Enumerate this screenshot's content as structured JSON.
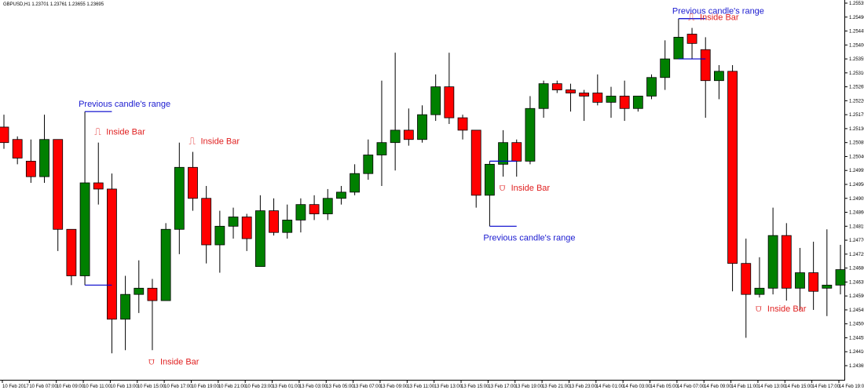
{
  "chart_data": {
    "type": "candlestick",
    "symbol_line": "GBPUSD,H1  1.23701 1.23761 1.23655 1.23695",
    "ylim": [
      1.2437,
      1.2554
    ],
    "y_ticks": [
      "1.25535",
      "1.25490",
      "1.25445",
      "1.25400",
      "1.25355",
      "1.25310",
      "1.25265",
      "1.25220",
      "1.25175",
      "1.25130",
      "1.25085",
      "1.25040",
      "1.24995",
      "1.24950",
      "1.24905",
      "1.24860",
      "1.24815",
      "1.24770",
      "1.24725",
      "1.24680",
      "1.24635",
      "1.24590",
      "1.24545",
      "1.24500",
      "1.24455",
      "1.24410",
      "1.24365"
    ],
    "x_ticks": [
      "10 Feb 2017",
      "10 Feb 07:00",
      "10 Feb 09:00",
      "10 Feb 11:00",
      "10 Feb 13:00",
      "10 Feb 15:00",
      "10 Feb 17:00",
      "10 Feb 19:00",
      "10 Feb 21:00",
      "10 Feb 23:00",
      "13 Feb 01:00",
      "13 Feb 03:00",
      "13 Feb 05:00",
      "13 Feb 07:00",
      "13 Feb 09:00",
      "13 Feb 11:00",
      "13 Feb 13:00",
      "13 Feb 15:00",
      "13 Feb 17:00",
      "13 Feb 19:00",
      "13 Feb 21:00",
      "13 Feb 23:00",
      "14 Feb 01:00",
      "14 Feb 03:00",
      "14 Feb 05:00",
      "14 Feb 07:00",
      "14 Feb 09:00",
      "14 Feb 11:00",
      "14 Feb 13:00",
      "14 Feb 15:00",
      "14 Feb 17:00",
      "14 Feb 19:00"
    ],
    "colors": {
      "bull": "#008000",
      "bear": "#ff0000",
      "range_line": "#0000cc",
      "label_range": "#1b1bd0",
      "label_inside": "#e02020",
      "axis": "#000000"
    },
    "candles": [
      {
        "o": 1.2514,
        "h": 1.2518,
        "l": 1.2507,
        "c": 1.2509
      },
      {
        "o": 1.251,
        "h": 1.2511,
        "l": 1.2502,
        "c": 1.2504
      },
      {
        "o": 1.2503,
        "h": 1.251,
        "l": 1.2496,
        "c": 1.2498
      },
      {
        "o": 1.2498,
        "h": 1.2518,
        "l": 1.2496,
        "c": 1.251
      },
      {
        "o": 1.251,
        "h": 1.251,
        "l": 1.2474,
        "c": 1.2481
      },
      {
        "o": 1.2481,
        "h": 1.2481,
        "l": 1.2463,
        "c": 1.2466
      },
      {
        "o": 1.2466,
        "h": 1.2519,
        "l": 1.2463,
        "c": 1.2496
      },
      {
        "o": 1.2496,
        "h": 1.2509,
        "l": 1.2489,
        "c": 1.2494
      },
      {
        "o": 1.2494,
        "h": 1.2499,
        "l": 1.2441,
        "c": 1.2452
      },
      {
        "o": 1.2452,
        "h": 1.2466,
        "l": 1.2442,
        "c": 1.246
      },
      {
        "o": 1.246,
        "h": 1.2471,
        "l": 1.2454,
        "c": 1.2462
      },
      {
        "o": 1.2462,
        "h": 1.2465,
        "l": 1.2442,
        "c": 1.2458
      },
      {
        "o": 1.2458,
        "h": 1.2483,
        "l": 1.2458,
        "c": 1.2481
      },
      {
        "o": 1.2481,
        "h": 1.2509,
        "l": 1.2473,
        "c": 1.2501
      },
      {
        "o": 1.2501,
        "h": 1.2506,
        "l": 1.2487,
        "c": 1.2491
      },
      {
        "o": 1.2491,
        "h": 1.2495,
        "l": 1.247,
        "c": 1.2476
      },
      {
        "o": 1.2476,
        "h": 1.2487,
        "l": 1.2467,
        "c": 1.2482
      },
      {
        "o": 1.2482,
        "h": 1.2488,
        "l": 1.2478,
        "c": 1.2485
      },
      {
        "o": 1.2485,
        "h": 1.2486,
        "l": 1.2474,
        "c": 1.2478
      },
      {
        "o": 1.2469,
        "h": 1.2492,
        "l": 1.2469,
        "c": 1.2487
      },
      {
        "o": 1.2487,
        "h": 1.2491,
        "l": 1.2479,
        "c": 1.248
      },
      {
        "o": 1.248,
        "h": 1.2489,
        "l": 1.2478,
        "c": 1.2484
      },
      {
        "o": 1.2484,
        "h": 1.2491,
        "l": 1.248,
        "c": 1.2489
      },
      {
        "o": 1.2489,
        "h": 1.2492,
        "l": 1.2484,
        "c": 1.2486
      },
      {
        "o": 1.2486,
        "h": 1.2494,
        "l": 1.2484,
        "c": 1.2491
      },
      {
        "o": 1.2491,
        "h": 1.2495,
        "l": 1.2489,
        "c": 1.2493
      },
      {
        "o": 1.2493,
        "h": 1.2502,
        "l": 1.2492,
        "c": 1.2499
      },
      {
        "o": 1.2499,
        "h": 1.251,
        "l": 1.2497,
        "c": 1.2505
      },
      {
        "o": 1.2505,
        "h": 1.2529,
        "l": 1.2495,
        "c": 1.2509
      },
      {
        "o": 1.2509,
        "h": 1.2538,
        "l": 1.25,
        "c": 1.2513
      },
      {
        "o": 1.2513,
        "h": 1.252,
        "l": 1.2508,
        "c": 1.251
      },
      {
        "o": 1.251,
        "h": 1.2521,
        "l": 1.2509,
        "c": 1.2518
      },
      {
        "o": 1.2518,
        "h": 1.2531,
        "l": 1.2516,
        "c": 1.2527
      },
      {
        "o": 1.2527,
        "h": 1.2538,
        "l": 1.2515,
        "c": 1.2517
      },
      {
        "o": 1.2517,
        "h": 1.2518,
        "l": 1.251,
        "c": 1.2513
      },
      {
        "o": 1.2513,
        "h": 1.2513,
        "l": 1.2488,
        "c": 1.2492
      },
      {
        "o": 1.2492,
        "h": 1.2503,
        "l": 1.2482,
        "c": 1.2502
      },
      {
        "o": 1.2502,
        "h": 1.2513,
        "l": 1.2498,
        "c": 1.2509
      },
      {
        "o": 1.2509,
        "h": 1.251,
        "l": 1.2498,
        "c": 1.2503
      },
      {
        "o": 1.2503,
        "h": 1.2524,
        "l": 1.2502,
        "c": 1.252
      },
      {
        "o": 1.252,
        "h": 1.2529,
        "l": 1.2517,
        "c": 1.2528
      },
      {
        "o": 1.2528,
        "h": 1.2529,
        "l": 1.2525,
        "c": 1.2526
      },
      {
        "o": 1.2526,
        "h": 1.2528,
        "l": 1.2519,
        "c": 1.2525
      },
      {
        "o": 1.2525,
        "h": 1.2526,
        "l": 1.2516,
        "c": 1.2524
      },
      {
        "o": 1.2525,
        "h": 1.2531,
        "l": 1.2521,
        "c": 1.2522
      },
      {
        "o": 1.2522,
        "h": 1.2527,
        "l": 1.2517,
        "c": 1.2524
      },
      {
        "o": 1.2524,
        "h": 1.2529,
        "l": 1.2516,
        "c": 1.252
      },
      {
        "o": 1.252,
        "h": 1.2524,
        "l": 1.2519,
        "c": 1.2524
      },
      {
        "o": 1.2524,
        "h": 1.2531,
        "l": 1.2523,
        "c": 1.253
      },
      {
        "o": 1.253,
        "h": 1.2542,
        "l": 1.2526,
        "c": 1.2536
      },
      {
        "o": 1.2536,
        "h": 1.2549,
        "l": 1.2536,
        "c": 1.2543
      },
      {
        "o": 1.2544,
        "h": 1.2546,
        "l": 1.2536,
        "c": 1.2541
      },
      {
        "o": 1.2539,
        "h": 1.2543,
        "l": 1.2517,
        "c": 1.2529
      },
      {
        "o": 1.2529,
        "h": 1.2534,
        "l": 1.2523,
        "c": 1.2532
      },
      {
        "o": 1.2532,
        "h": 1.2534,
        "l": 1.2461,
        "c": 1.247
      },
      {
        "o": 1.247,
        "h": 1.2478,
        "l": 1.2446,
        "c": 1.246
      },
      {
        "o": 1.246,
        "h": 1.2472,
        "l": 1.2459,
        "c": 1.2462
      },
      {
        "o": 1.2462,
        "h": 1.2488,
        "l": 1.246,
        "c": 1.2479
      },
      {
        "o": 1.2479,
        "h": 1.2483,
        "l": 1.2458,
        "c": 1.2462
      },
      {
        "o": 1.2462,
        "h": 1.2475,
        "l": 1.2455,
        "c": 1.2467
      },
      {
        "o": 1.2467,
        "h": 1.2477,
        "l": 1.2455,
        "c": 1.2461
      },
      {
        "o": 1.2462,
        "h": 1.2481,
        "l": 1.2453,
        "c": 1.2463
      },
      {
        "o": 1.2463,
        "h": 1.2476,
        "l": 1.246,
        "c": 1.2468
      }
    ],
    "annotations": [
      {
        "type": "range",
        "label": "Previous candle's range",
        "index": 6,
        "label_above": true
      },
      {
        "type": "inside",
        "label": "Inside Bar",
        "index": 7,
        "glyph": "⎍",
        "above": true
      },
      {
        "type": "inside",
        "label": "Inside Bar",
        "index": 14,
        "glyph": "⎍",
        "above": true
      },
      {
        "type": "inside",
        "label": "Inside Bar",
        "index": 11,
        "glyph": "⩌",
        "above": false
      },
      {
        "type": "range",
        "label": "Previous candle's range",
        "index": 36,
        "label_above": false
      },
      {
        "type": "inside",
        "label": "Inside Bar",
        "index": 37,
        "glyph": "⩌",
        "above": false
      },
      {
        "type": "range",
        "label": "Previous candle's range",
        "index": 50,
        "label_above": true
      },
      {
        "type": "inside",
        "label": "Inside Bar",
        "index": 51,
        "glyph": "⎍",
        "above": true
      },
      {
        "type": "inside",
        "label": "Inside Bar",
        "index": 56,
        "glyph": "⩌",
        "above": false
      }
    ]
  }
}
